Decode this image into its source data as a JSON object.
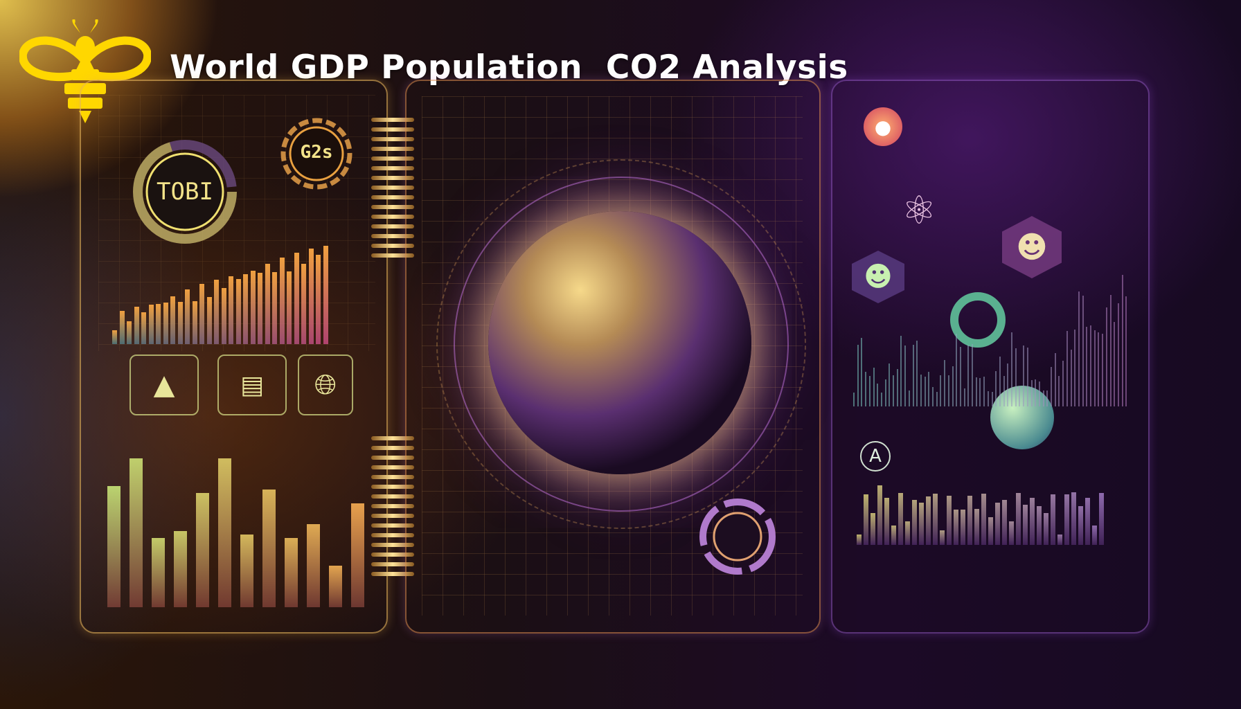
{
  "title": "World GDP Population  CO2 Analysis",
  "logo": {
    "name": "bee-logo",
    "color": "#FFD700"
  },
  "left_panel": {
    "gauge_label": "TOBI",
    "dial_label": "G2s",
    "icons": [
      "map-icon",
      "document-icon",
      "globe-icon"
    ]
  },
  "right_panel": {
    "badge_label": "A",
    "icons": [
      "location-pin-icon",
      "atom-icon",
      "user-icon",
      "user-icon",
      "location-icon"
    ]
  },
  "colors": {
    "accent_gold": "#F2C14E",
    "accent_purple": "#9B4FD6",
    "background": "#1B0F1E"
  }
}
